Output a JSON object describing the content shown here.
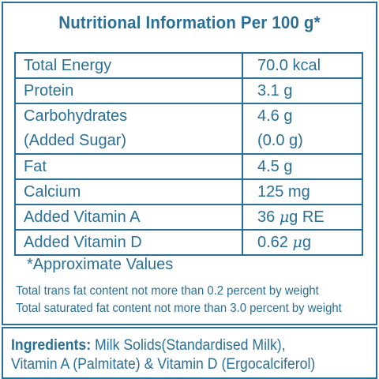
{
  "title": "Nutritional Information Per 100 g*",
  "rows": [
    {
      "name": "Total Energy",
      "value": "70.0 kcal"
    },
    {
      "name": "Protein",
      "value": "3.1 g"
    },
    {
      "name": "Carbohydrates",
      "name2": "(Added Sugar)",
      "value": "4.6 g",
      "value2": "(0.0 g)"
    },
    {
      "name": "Fat",
      "value": "4.5 g"
    },
    {
      "name": "Calcium",
      "value": "125 mg"
    },
    {
      "name": "Added Vitamin A",
      "value_num": "36",
      "value_unit_mu": "μ",
      "value_unit_rest": "g RE"
    },
    {
      "name": "Added Vitamin D",
      "value_num": "0.62",
      "value_unit_mu": "μ",
      "value_unit_rest": "g"
    }
  ],
  "approx_note": "*Approximate Values",
  "notes": [
    "Total trans fat content not more than 0.2 percent by weight",
    "Total saturated fat content not more than 3.0 percent by weight"
  ],
  "ingredients": {
    "label": "Ingredients:",
    "line1": "Milk Solids(Standardised Milk),",
    "line2": "Vitamin A (Palmitate) & Vitamin D (Ergocalciferol)"
  }
}
